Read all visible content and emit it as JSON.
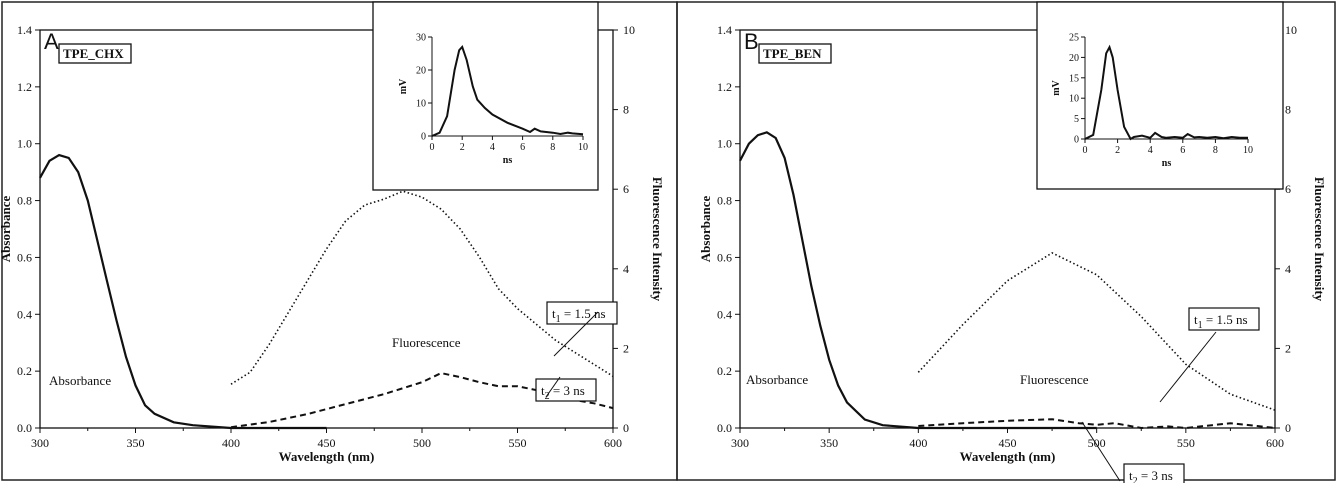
{
  "chart_data": [
    {
      "type": "line",
      "panel_label": "A",
      "sample_label": "TPE_CHX",
      "xlabel": "Wavelength (nm)",
      "ylabel_left": "Absorbance",
      "ylabel_right": "Fluorescence Intensity",
      "xlim": [
        300,
        600
      ],
      "ylim_left": [
        0,
        1.4
      ],
      "ylim_right": [
        0,
        10
      ],
      "x_ticks": [
        "300",
        "350",
        "400",
        "450",
        "500",
        "550",
        "600"
      ],
      "y_left_ticks": [
        "0.0",
        "0.2",
        "0.4",
        "0.6",
        "0.8",
        "1.0",
        "1.2",
        "1.4"
      ],
      "y_right_ticks": [
        "0",
        "2",
        "4",
        "6",
        "8",
        "10"
      ],
      "annotations": {
        "absorbance": "Absorbance",
        "fluorescence": "Fluorescence",
        "t1": "t1 = 1.5 ns",
        "t2": "t2 = 3 ns"
      },
      "series": [
        {
          "name": "Absorbance",
          "axis": "left",
          "style": "solid",
          "points": [
            [
              300,
              0.88
            ],
            [
              305,
              0.94
            ],
            [
              310,
              0.96
            ],
            [
              315,
              0.95
            ],
            [
              320,
              0.9
            ],
            [
              325,
              0.8
            ],
            [
              330,
              0.66
            ],
            [
              335,
              0.52
            ],
            [
              340,
              0.38
            ],
            [
              345,
              0.25
            ],
            [
              350,
              0.15
            ],
            [
              355,
              0.08
            ],
            [
              360,
              0.05
            ],
            [
              370,
              0.02
            ],
            [
              380,
              0.01
            ],
            [
              400,
              0.0
            ],
            [
              450,
              0.0
            ]
          ]
        },
        {
          "name": "t1 = 1.5 ns",
          "axis": "right",
          "style": "dotted",
          "points": [
            [
              400,
              1.1
            ],
            [
              410,
              1.4
            ],
            [
              420,
              2.1
            ],
            [
              430,
              2.9
            ],
            [
              440,
              3.7
            ],
            [
              450,
              4.5
            ],
            [
              460,
              5.2
            ],
            [
              470,
              5.6
            ],
            [
              480,
              5.75
            ],
            [
              490,
              5.95
            ],
            [
              500,
              5.8
            ],
            [
              510,
              5.5
            ],
            [
              520,
              5.0
            ],
            [
              530,
              4.3
            ],
            [
              540,
              3.5
            ],
            [
              550,
              3.0
            ],
            [
              560,
              2.6
            ],
            [
              570,
              2.2
            ],
            [
              580,
              1.9
            ],
            [
              590,
              1.6
            ],
            [
              600,
              1.3
            ]
          ]
        },
        {
          "name": "t2 = 3 ns",
          "axis": "right",
          "style": "dashed",
          "points": [
            [
              400,
              0.02
            ],
            [
              420,
              0.15
            ],
            [
              440,
              0.35
            ],
            [
              460,
              0.6
            ],
            [
              480,
              0.85
            ],
            [
              500,
              1.15
            ],
            [
              510,
              1.38
            ],
            [
              520,
              1.28
            ],
            [
              530,
              1.15
            ],
            [
              540,
              1.05
            ],
            [
              550,
              1.05
            ],
            [
              560,
              0.95
            ],
            [
              570,
              0.75
            ],
            [
              580,
              0.7
            ],
            [
              590,
              0.62
            ],
            [
              600,
              0.5
            ]
          ]
        }
      ],
      "inset": {
        "xlabel": "ns",
        "ylabel": "mV",
        "xlim": [
          0,
          10
        ],
        "ylim": [
          0,
          30
        ],
        "x_ticks": [
          "0",
          "2",
          "4",
          "6",
          "8",
          "10"
        ],
        "y_ticks": [
          "0",
          "10",
          "20",
          "30"
        ],
        "points": [
          [
            0,
            0
          ],
          [
            0.5,
            1
          ],
          [
            1,
            6
          ],
          [
            1.5,
            20
          ],
          [
            1.8,
            26
          ],
          [
            2,
            27
          ],
          [
            2.3,
            23
          ],
          [
            2.7,
            15
          ],
          [
            3,
            11
          ],
          [
            3.5,
            8.5
          ],
          [
            4,
            6.5
          ],
          [
            5,
            4
          ],
          [
            6,
            2.2
          ],
          [
            6.5,
            1.2
          ],
          [
            6.8,
            2.2
          ],
          [
            7.2,
            1.4
          ],
          [
            8,
            1
          ],
          [
            8.5,
            0.6
          ],
          [
            9,
            1
          ],
          [
            9.3,
            0.8
          ],
          [
            10,
            0.5
          ]
        ]
      }
    },
    {
      "type": "line",
      "panel_label": "B",
      "sample_label": "TPE_BEN",
      "xlabel": "Wavelength (nm)",
      "ylabel_left": "Absorbance",
      "ylabel_right": "Fluorescence Intensity",
      "xlim": [
        300,
        600
      ],
      "ylim_left": [
        0,
        1.4
      ],
      "ylim_right": [
        0,
        10
      ],
      "x_ticks": [
        "300",
        "350",
        "400",
        "450",
        "500",
        "550",
        "600"
      ],
      "y_left_ticks": [
        "0.0",
        "0.2",
        "0.4",
        "0.6",
        "0.8",
        "1.0",
        "1.2",
        "1.4"
      ],
      "y_right_ticks": [
        "0",
        "2",
        "4",
        "6",
        "8",
        "10"
      ],
      "annotations": {
        "absorbance": "Absorbance",
        "fluorescence": "Fluorescence",
        "t1": "t1 = 1.5 ns",
        "t2": "t2 = 3 ns"
      },
      "series": [
        {
          "name": "Absorbance",
          "axis": "left",
          "style": "solid",
          "points": [
            [
              300,
              0.94
            ],
            [
              305,
              1.0
            ],
            [
              310,
              1.03
            ],
            [
              315,
              1.04
            ],
            [
              320,
              1.02
            ],
            [
              325,
              0.95
            ],
            [
              330,
              0.82
            ],
            [
              335,
              0.66
            ],
            [
              340,
              0.5
            ],
            [
              345,
              0.36
            ],
            [
              350,
              0.24
            ],
            [
              355,
              0.15
            ],
            [
              360,
              0.09
            ],
            [
              370,
              0.03
            ],
            [
              380,
              0.01
            ],
            [
              400,
              0.0
            ],
            [
              500,
              0.0
            ]
          ]
        },
        {
          "name": "t1 = 1.5 ns",
          "axis": "right",
          "style": "dotted",
          "points": [
            [
              400,
              1.4
            ],
            [
              425,
              2.6
            ],
            [
              450,
              3.7
            ],
            [
              475,
              4.4
            ],
            [
              500,
              3.85
            ],
            [
              525,
              2.8
            ],
            [
              550,
              1.6
            ],
            [
              575,
              0.85
            ],
            [
              600,
              0.45
            ]
          ]
        },
        {
          "name": "t2 = 3 ns",
          "axis": "right",
          "style": "dashed",
          "points": [
            [
              400,
              0.05
            ],
            [
              425,
              0.12
            ],
            [
              450,
              0.18
            ],
            [
              475,
              0.22
            ],
            [
              490,
              0.12
            ],
            [
              500,
              0.08
            ],
            [
              510,
              0.12
            ],
            [
              525,
              0.0
            ],
            [
              540,
              0.04
            ],
            [
              550,
              0.0
            ],
            [
              575,
              0.12
            ],
            [
              590,
              0.05
            ],
            [
              600,
              0.0
            ]
          ]
        }
      ],
      "inset": {
        "xlabel": "ns",
        "ylabel": "mV",
        "xlim": [
          0,
          10
        ],
        "ylim": [
          0,
          25
        ],
        "x_ticks": [
          "0",
          "2",
          "4",
          "6",
          "8",
          "10"
        ],
        "y_ticks": [
          "0",
          "5",
          "10",
          "15",
          "20",
          "25"
        ],
        "points": [
          [
            0,
            0
          ],
          [
            0.5,
            1
          ],
          [
            1,
            12
          ],
          [
            1.3,
            21
          ],
          [
            1.5,
            22.5
          ],
          [
            1.7,
            20
          ],
          [
            2,
            12
          ],
          [
            2.4,
            3
          ],
          [
            2.8,
            0
          ],
          [
            3,
            0.5
          ],
          [
            3.5,
            0.8
          ],
          [
            4,
            0.3
          ],
          [
            4.3,
            1.5
          ],
          [
            4.7,
            0.5
          ],
          [
            5,
            0.3
          ],
          [
            5.5,
            0.5
          ],
          [
            6,
            0.3
          ],
          [
            6.3,
            1.2
          ],
          [
            6.7,
            0.4
          ],
          [
            7,
            0.5
          ],
          [
            7.5,
            0.3
          ],
          [
            8,
            0.5
          ],
          [
            8.5,
            0.2
          ],
          [
            9,
            0.5
          ],
          [
            9.5,
            0.3
          ],
          [
            10,
            0.3
          ]
        ]
      }
    }
  ]
}
